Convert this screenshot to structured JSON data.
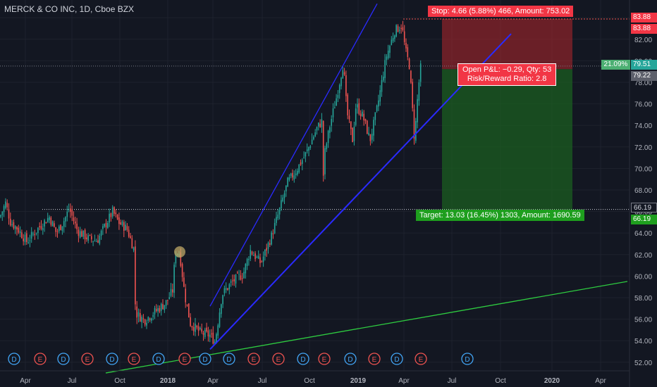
{
  "title": "MERCK & CO INC, 1D, Cboe BZX",
  "colors": {
    "background": "#131722",
    "up": "#26a69a",
    "down": "#ef5350",
    "channel": "#2a2aff",
    "trend_green": "#2ecc40",
    "stop_zone": "#b3262b",
    "target_zone": "#1b5e20"
  },
  "orders": {
    "stop": "Stop: 4.66 (5.88%) 466, Amount: 753.02",
    "target": "Target: 13.03 (16.45%) 1303, Amount: 1690.59",
    "pnl": "Open P&L: −0.29, Qty: 53",
    "risk_reward": "Risk/Reward Ratio: 2.8",
    "percent_badge": "21.09%"
  },
  "price_labels": {
    "stop_top": "83.88",
    "stop_2": "83.88",
    "last": "79.51",
    "entry": "79.22",
    "target_1": "66.19",
    "target_2": "66.19"
  },
  "events": [
    "D",
    "E",
    "D",
    "E",
    "D",
    "E",
    "D",
    "E",
    "D",
    "D",
    "E",
    "E",
    "D",
    "E",
    "D",
    "E",
    "D",
    "E",
    "D",
    "E",
    "E"
  ],
  "chart_data": {
    "type": "candlestick",
    "title": "MERCK & CO INC, 1D, Cboe BZX",
    "ylim": [
      51.2,
      85.2
    ],
    "y_ticks": [
      "52.00",
      "54.00",
      "56.00",
      "58.00",
      "60.00",
      "62.00",
      "64.00",
      "66.00",
      "68.00",
      "70.00",
      "72.00",
      "74.00",
      "76.00",
      "78.00",
      "80.00",
      "82.00",
      "84.00"
    ],
    "x_ticks": [
      "Apr",
      "Jul",
      "Oct",
      "2018",
      "Apr",
      "Jul",
      "Oct",
      "2019",
      "Apr",
      "Jul",
      "Oct",
      "2020",
      "Apr"
    ],
    "price_path": [
      [
        0,
        65.5
      ],
      [
        8,
        66.8
      ],
      [
        15,
        65.0
      ],
      [
        25,
        64.4
      ],
      [
        38,
        63.2
      ],
      [
        55,
        64.5
      ],
      [
        70,
        65.5
      ],
      [
        80,
        64.0
      ],
      [
        92,
        65.3
      ],
      [
        98,
        66.3
      ],
      [
        110,
        64.2
      ],
      [
        125,
        63.5
      ],
      [
        138,
        63.3
      ],
      [
        150,
        64.8
      ],
      [
        160,
        66.0
      ],
      [
        168,
        65.0
      ],
      [
        180,
        64.4
      ],
      [
        190,
        62.5
      ],
      [
        191,
        58.2
      ],
      [
        193,
        56.5
      ],
      [
        205,
        55.9
      ],
      [
        220,
        56.7
      ],
      [
        235,
        57.5
      ],
      [
        246,
        58.8
      ],
      [
        248,
        62.3
      ],
      [
        255,
        62.1
      ],
      [
        262,
        58.3
      ],
      [
        270,
        55.6
      ],
      [
        285,
        54.7
      ],
      [
        298,
        54.5
      ],
      [
        305,
        53.9
      ],
      [
        315,
        58.3
      ],
      [
        330,
        59.5
      ],
      [
        345,
        60.2
      ],
      [
        355,
        62.4
      ],
      [
        370,
        61.2
      ],
      [
        385,
        63.7
      ],
      [
        395,
        65.8
      ],
      [
        408,
        68.7
      ],
      [
        420,
        69.8
      ],
      [
        435,
        71.5
      ],
      [
        450,
        73.8
      ],
      [
        458,
        74.5
      ],
      [
        459,
        67.2
      ],
      [
        460,
        71.2
      ],
      [
        468,
        74.0
      ],
      [
        478,
        76.8
      ],
      [
        487,
        79.8
      ],
      [
        492,
        75.3
      ],
      [
        500,
        72.6
      ],
      [
        505,
        75.9
      ],
      [
        515,
        74.8
      ],
      [
        525,
        72.6
      ],
      [
        535,
        75.6
      ],
      [
        548,
        80.4
      ],
      [
        560,
        82.8
      ],
      [
        570,
        83.3
      ],
      [
        575,
        81.0
      ],
      [
        581,
        79.5
      ],
      [
        588,
        72.6
      ],
      [
        593,
        77.2
      ],
      [
        597,
        79.5
      ]
    ],
    "series": [
      {
        "name": "",
        "type": "trendline",
        "points": [
          [
            150,
            51.0
          ],
          [
            890,
            59.5
          ]
        ]
      },
      {
        "name": "",
        "type": "trendline",
        "points": [
          [
            298,
            57.2
          ],
          [
            535,
            85.3
          ]
        ]
      },
      {
        "name": "",
        "type": "trendline",
        "points": [
          [
            298,
            53.2
          ],
          [
            725,
            82.5
          ]
        ]
      }
    ],
    "hline": 66.19,
    "position": {
      "entry": 79.22,
      "stop": 83.88,
      "target": 66.19,
      "last": 79.51
    }
  }
}
